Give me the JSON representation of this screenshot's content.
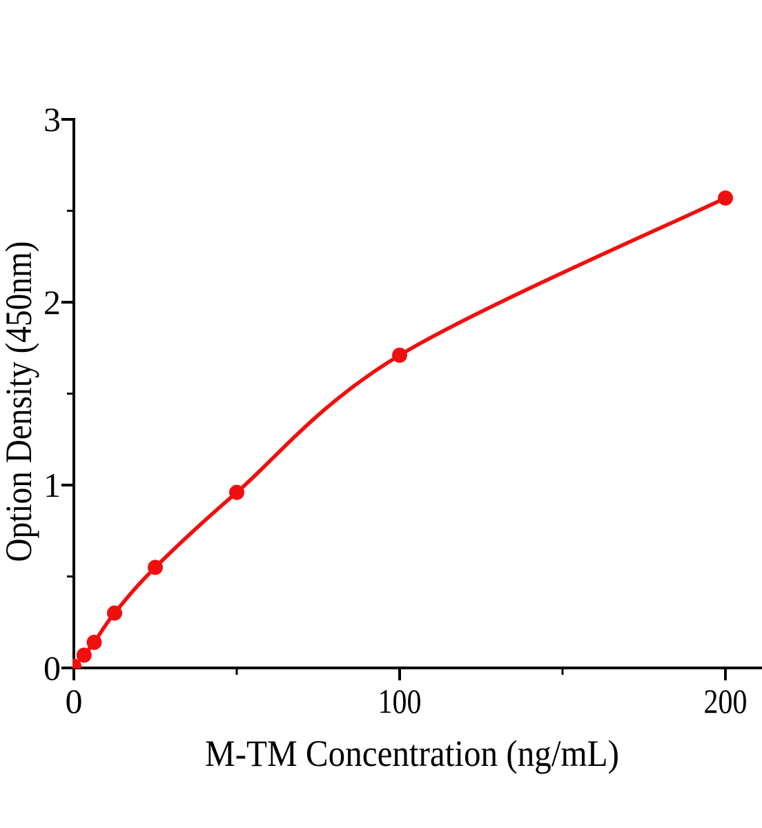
{
  "chart_data": {
    "type": "line",
    "title": "",
    "xlabel": "M-TM Concentration（ng/mL）",
    "ylabel": "Option Density（450nm）",
    "series": [
      {
        "x": [
          0,
          3.125,
          6.25,
          12.5,
          25,
          50,
          100,
          200
        ],
        "y": [
          0.01,
          0.07,
          0.14,
          0.3,
          0.55,
          0.96,
          1.71,
          2.57
        ],
        "color": "#f00f0f",
        "marker": "circle",
        "line_style": "smooth"
      }
    ],
    "xlim": [
      0,
      211
    ],
    "ylim": [
      0,
      3
    ],
    "x_major_ticks": [
      0,
      100,
      200
    ],
    "x_minor_ticks": [
      50,
      150
    ],
    "y_major_ticks": [
      0,
      1,
      2,
      3
    ],
    "y_minor_ticks": [
      0.5,
      1.5,
      2.5
    ],
    "x_tick_labels": [
      "0",
      "100",
      "200"
    ],
    "y_tick_labels": [
      "0",
      "1",
      "2",
      "3"
    ],
    "grid": false,
    "legend_position": "none",
    "axis_color": "#000000",
    "background_color": "#ffffff"
  }
}
